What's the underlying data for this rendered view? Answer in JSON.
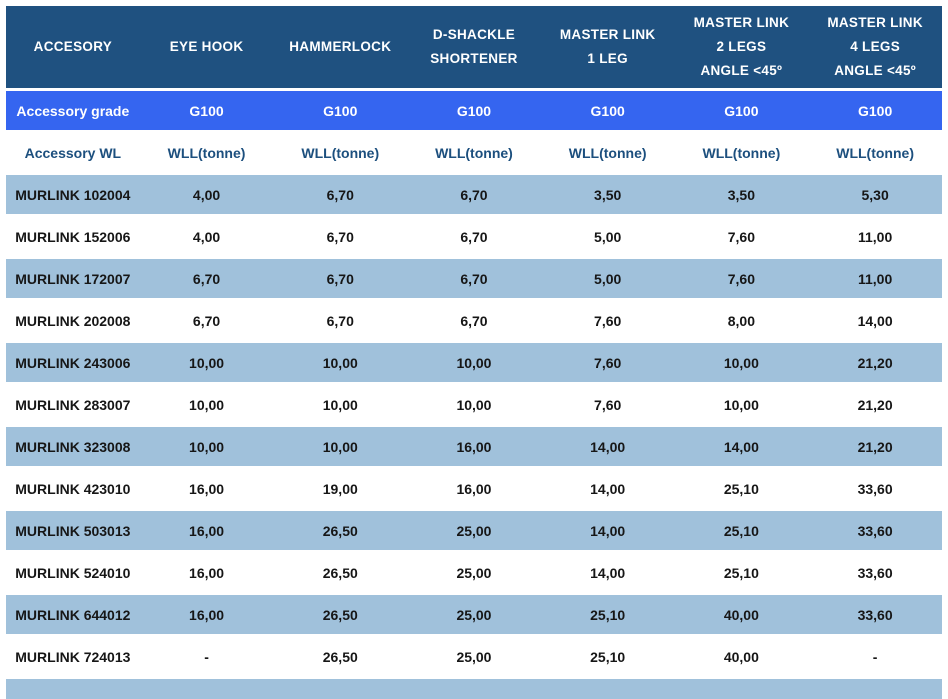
{
  "colors": {
    "header_bg": "#1F5180",
    "grade_row_bg": "#3565F0",
    "alt_row_bg": "#A0C1DB",
    "header_text": "#FFFFFF",
    "label_text": "#1C4F7E",
    "data_text": "#161616"
  },
  "chart_data": {
    "type": "table",
    "columns": [
      "ACCESORY",
      "EYE HOOK",
      "HAMMERLOCK",
      "D-SHACKLE SHORTENER",
      "MASTER LINK 1 LEG",
      "MASTER LINK 2 LEGS ANGLE <45º",
      "MASTER LINK 4 LEGS ANGLE <45º"
    ],
    "header_lines": [
      [
        "ACCESORY"
      ],
      [
        "EYE HOOK"
      ],
      [
        "HAMMERLOCK"
      ],
      [
        "D-SHACKLE",
        "SHORTENER"
      ],
      [
        "MASTER LINK",
        "1 LEG"
      ],
      [
        "MASTER LINK",
        "2 LEGS",
        "ANGLE <45º"
      ],
      [
        "MASTER LINK",
        "4 LEGS",
        "ANGLE <45º"
      ]
    ],
    "grade_row": {
      "label": "Accessory grade",
      "values": [
        "G100",
        "G100",
        "G100",
        "G100",
        "G100",
        "G100"
      ]
    },
    "wl_row": {
      "label": "Accessory WL",
      "values": [
        "WLL(tonne)",
        "WLL(tonne)",
        "WLL(tonne)",
        "WLL(tonne)",
        "WLL(tonne)",
        "WLL(tonne)"
      ]
    },
    "rows": [
      {
        "name": "MURLINK 102004",
        "values": [
          "4,00",
          "6,70",
          "6,70",
          "3,50",
          "3,50",
          "5,30"
        ]
      },
      {
        "name": "MURLINK 152006",
        "values": [
          "4,00",
          "6,70",
          "6,70",
          "5,00",
          "7,60",
          "11,00"
        ]
      },
      {
        "name": "MURLINK 172007",
        "values": [
          "6,70",
          "6,70",
          "6,70",
          "5,00",
          "7,60",
          "11,00"
        ]
      },
      {
        "name": "MURLINK 202008",
        "values": [
          "6,70",
          "6,70",
          "6,70",
          "7,60",
          "8,00",
          "14,00"
        ]
      },
      {
        "name": "MURLINK 243006",
        "values": [
          "10,00",
          "10,00",
          "10,00",
          "7,60",
          "10,00",
          "21,20"
        ]
      },
      {
        "name": "MURLINK 283007",
        "values": [
          "10,00",
          "10,00",
          "10,00",
          "7,60",
          "10,00",
          "21,20"
        ]
      },
      {
        "name": "MURLINK 323008",
        "values": [
          "10,00",
          "10,00",
          "16,00",
          "14,00",
          "14,00",
          "21,20"
        ]
      },
      {
        "name": "MURLINK 423010",
        "values": [
          "16,00",
          "19,00",
          "16,00",
          "14,00",
          "25,10",
          "33,60"
        ]
      },
      {
        "name": "MURLINK 503013",
        "values": [
          "16,00",
          "26,50",
          "25,00",
          "14,00",
          "25,10",
          "33,60"
        ]
      },
      {
        "name": "MURLINK 524010",
        "values": [
          "16,00",
          "26,50",
          "25,00",
          "14,00",
          "25,10",
          "33,60"
        ]
      },
      {
        "name": "MURLINK 644012",
        "values": [
          "16,00",
          "26,50",
          "25,00",
          "25,10",
          "40,00",
          "33,60"
        ]
      },
      {
        "name": "MURLINK 724013",
        "values": [
          "-",
          "26,50",
          "25,00",
          "25,10",
          "40,00",
          "-"
        ]
      }
    ]
  }
}
